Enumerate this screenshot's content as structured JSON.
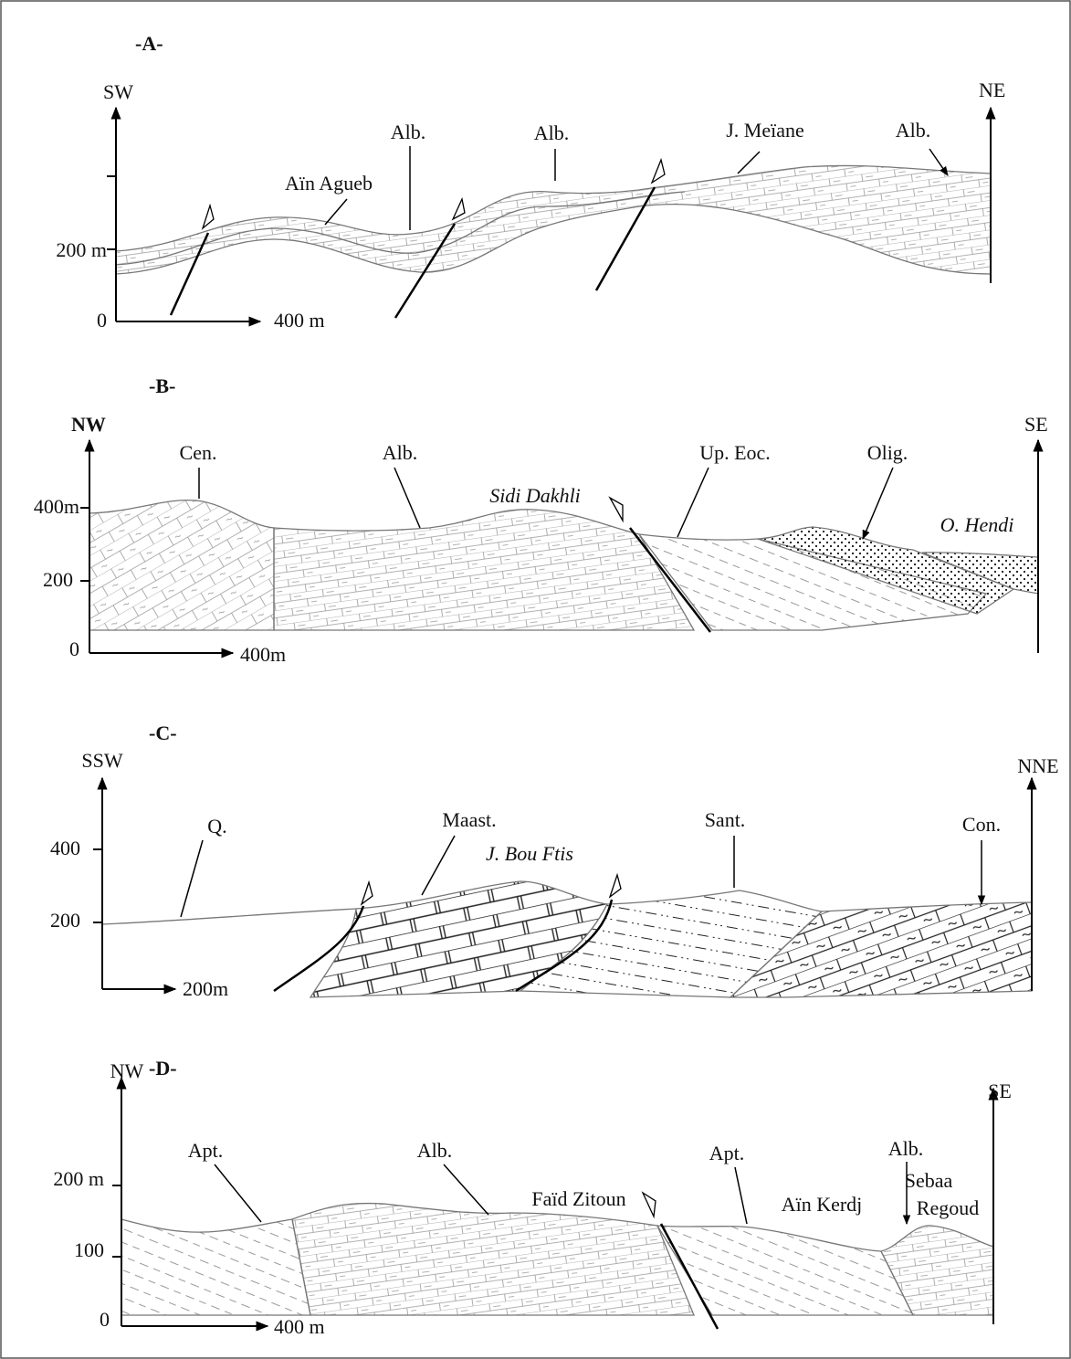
{
  "panels": [
    {
      "label": "-A-",
      "left_direction": "SW",
      "right_direction": "NE",
      "depth_labels": [
        "200 m",
        "0"
      ],
      "distance_label": "400 m",
      "annotations": [
        "Aïn Agueb",
        "Alb.",
        "Alb.",
        "J. Meïane",
        "Alb."
      ]
    },
    {
      "label": "-B-",
      "left_direction": "NW",
      "right_direction": "SE",
      "depth_labels": [
        "400m",
        "200",
        "0"
      ],
      "distance_label": "400m",
      "annotations": [
        "Cen.",
        "Alb.",
        "Sidi Dakhli",
        "Up. Eoc.",
        "Olig.",
        "O. Hendi"
      ]
    },
    {
      "label": "-C-",
      "left_direction": "SSW",
      "right_direction": "NNE",
      "depth_labels": [
        "400",
        "200"
      ],
      "distance_label": "200m",
      "annotations": [
        "Q.",
        "Maast.",
        "J. Bou Ftis",
        "Sant.",
        "Con."
      ]
    },
    {
      "label": "-D-",
      "left_direction": "NW",
      "right_direction": "SE",
      "depth_labels": [
        "200 m",
        "100",
        "0"
      ],
      "distance_label": "400 m",
      "annotations": [
        "Apt.",
        "Alb.",
        "Faïd Zitoun",
        "Apt.",
        "Aïn Kerdj",
        "Alb.",
        "Sebaa",
        "Regoud"
      ]
    }
  ]
}
